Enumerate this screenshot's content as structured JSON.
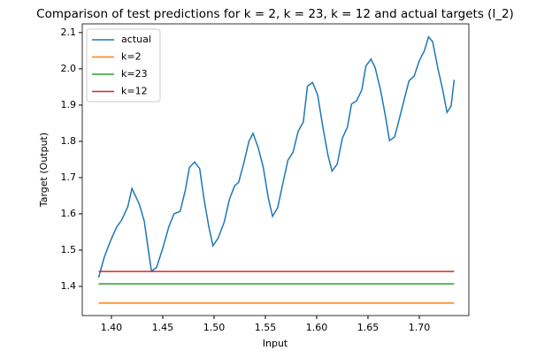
{
  "chart_data": {
    "type": "line",
    "title": "Comparison of test predictions for k = 2, k = 23, k = 12 and actual targets (l_2)",
    "x_label": "Input",
    "y_label": "Target (Output)",
    "xlim": [
      1.3716,
      1.7483
    ],
    "ylim": [
      1.3195,
      2.124
    ],
    "xticks": [
      {
        "value": 1.4,
        "label": "1.40"
      },
      1.45,
      {
        "value": 1.5,
        "label": "1.50"
      },
      1.55,
      {
        "value": 1.6,
        "label": "1.60"
      },
      1.65,
      {
        "value": 1.7,
        "label": "1.70"
      }
    ],
    "yticks": [
      1.4,
      1.5,
      1.6,
      1.7,
      1.8,
      1.9,
      {
        "value": 2.0,
        "label": "2.0"
      },
      2.1
    ],
    "legend": "upper left",
    "grid": false,
    "series": [
      {
        "name": "actual",
        "color": "#1f77b4",
        "x": [
          1.3875,
          1.393,
          1.399,
          1.405,
          1.41,
          1.416,
          1.42,
          1.427,
          1.432,
          1.436,
          1.439,
          1.444,
          1.45,
          1.456,
          1.461,
          1.467,
          1.472,
          1.476,
          1.481,
          1.486,
          1.49,
          1.495,
          1.499,
          1.504,
          1.51,
          1.515,
          1.52,
          1.524,
          1.529,
          1.534,
          1.538,
          1.543,
          1.548,
          1.553,
          1.557,
          1.562,
          1.567,
          1.572,
          1.577,
          1.582,
          1.587,
          1.591,
          1.596,
          1.601,
          1.606,
          1.611,
          1.615,
          1.62,
          1.625,
          1.63,
          1.634,
          1.639,
          1.644,
          1.648,
          1.653,
          1.657,
          1.662,
          1.667,
          1.671,
          1.676,
          1.681,
          1.686,
          1.69,
          1.695,
          1.7,
          1.705,
          1.709,
          1.713,
          1.718,
          1.723,
          1.727,
          1.731,
          1.734
        ],
        "values": [
          1.424,
          1.48,
          1.525,
          1.563,
          1.583,
          1.62,
          1.67,
          1.628,
          1.58,
          1.5,
          1.442,
          1.452,
          1.505,
          1.565,
          1.6,
          1.607,
          1.665,
          1.728,
          1.743,
          1.725,
          1.645,
          1.563,
          1.512,
          1.533,
          1.578,
          1.64,
          1.677,
          1.687,
          1.74,
          1.8,
          1.822,
          1.783,
          1.728,
          1.642,
          1.593,
          1.617,
          1.683,
          1.748,
          1.77,
          1.828,
          1.853,
          1.952,
          1.962,
          1.928,
          1.84,
          1.762,
          1.718,
          1.737,
          1.808,
          1.84,
          1.903,
          1.912,
          1.942,
          2.008,
          2.027,
          2.003,
          1.945,
          1.87,
          1.802,
          1.812,
          1.867,
          1.923,
          1.967,
          1.98,
          2.022,
          2.05,
          2.088,
          2.075,
          2.003,
          1.94,
          1.88,
          1.897,
          1.97
        ]
      },
      {
        "name": "k=2",
        "color": "#ff7f0e",
        "x": [
          1.3875,
          1.734
        ],
        "values": [
          1.354,
          1.354
        ]
      },
      {
        "name": "k=23",
        "color": "#2ca02c",
        "x": [
          1.3875,
          1.734
        ],
        "values": [
          1.407,
          1.407
        ]
      },
      {
        "name": "k=12",
        "color": "#d62728",
        "x": [
          1.3875,
          1.734
        ],
        "values": [
          1.441,
          1.441
        ]
      }
    ]
  }
}
